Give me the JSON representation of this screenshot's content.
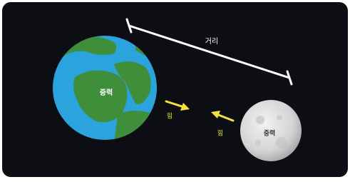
{
  "nodes": [
    {
      "label": "중력"
    },
    {
      "label": "중력"
    }
  ],
  "distance": {
    "label": "거리"
  },
  "forces": [
    {
      "label": "힘"
    },
    {
      "label": "힘"
    }
  ]
}
